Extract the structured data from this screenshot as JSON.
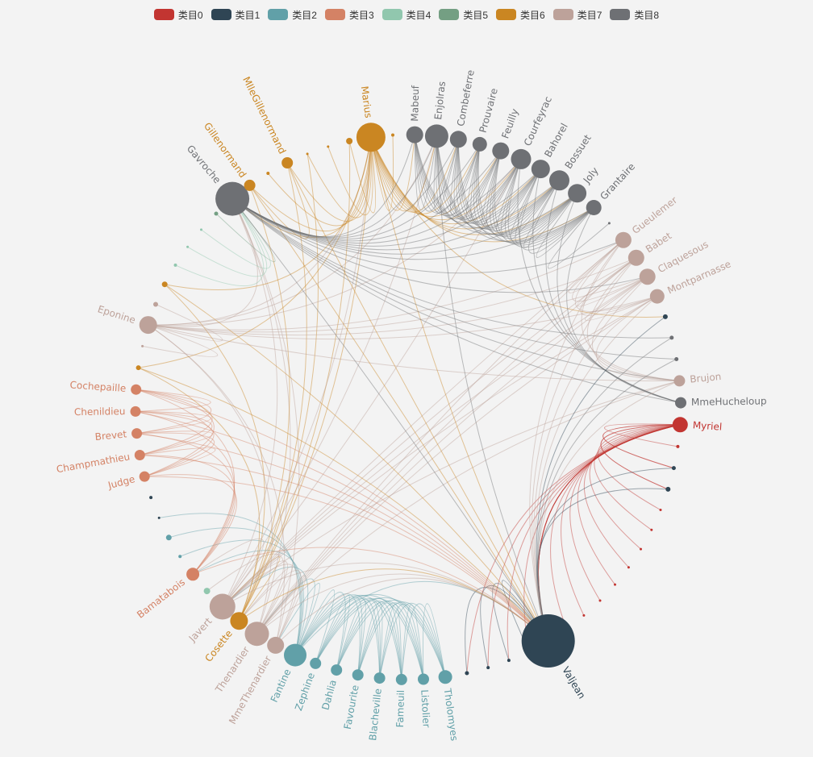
{
  "legend": {
    "items": [
      {
        "label": "类目0",
        "color": "#c23531"
      },
      {
        "label": "类目1",
        "color": "#2f4554"
      },
      {
        "label": "类目2",
        "color": "#61a0a8"
      },
      {
        "label": "类目3",
        "color": "#d48265"
      },
      {
        "label": "类目4",
        "color": "#91c7ae"
      },
      {
        "label": "类目5",
        "color": "#749f83"
      },
      {
        "label": "类目6",
        "color": "#ca8622"
      },
      {
        "label": "类目7",
        "color": "#bda29a"
      },
      {
        "label": "类目8",
        "color": "#6e7074"
      }
    ]
  },
  "nodes": [
    {
      "name": "Myriel",
      "category": 0,
      "size": 9.5,
      "labeled": true
    },
    {
      "name": "",
      "category": 0,
      "size": 2
    },
    {
      "name": "",
      "category": 1,
      "size": 2.5
    },
    {
      "name": "",
      "category": 1,
      "size": 3
    },
    {
      "name": "",
      "category": 0,
      "size": 1.5
    },
    {
      "name": "",
      "category": 0,
      "size": 1.5
    },
    {
      "name": "",
      "category": 0,
      "size": 1.5
    },
    {
      "name": "",
      "category": 0,
      "size": 1.5
    },
    {
      "name": "",
      "category": 0,
      "size": 1.5
    },
    {
      "name": "",
      "category": 0,
      "size": 1.5
    },
    {
      "name": "",
      "category": 0,
      "size": 1.5
    },
    {
      "name": "",
      "category": 0,
      "size": 1.5
    },
    {
      "name": "Valjean",
      "category": 1,
      "size": 33,
      "labeled": true
    },
    {
      "name": "",
      "category": 1,
      "size": 2
    },
    {
      "name": "",
      "category": 1,
      "size": 2
    },
    {
      "name": "",
      "category": 1,
      "size": 2
    },
    {
      "name": "",
      "category": 1,
      "size": 2.5
    },
    {
      "name": "Tholomyes",
      "category": 2,
      "size": 8.5,
      "labeled": true
    },
    {
      "name": "Listolier",
      "category": 2,
      "size": 7,
      "labeled": true
    },
    {
      "name": "Fameuil",
      "category": 2,
      "size": 7,
      "labeled": true
    },
    {
      "name": "Blacheville",
      "category": 2,
      "size": 7,
      "labeled": true
    },
    {
      "name": "Favourite",
      "category": 2,
      "size": 7,
      "labeled": true
    },
    {
      "name": "Dahlia",
      "category": 2,
      "size": 7,
      "labeled": true
    },
    {
      "name": "Zephine",
      "category": 2,
      "size": 7,
      "labeled": true
    },
    {
      "name": "Fantine",
      "category": 2,
      "size": 14,
      "labeled": true
    },
    {
      "name": "MmeThenardier",
      "category": 7,
      "size": 10.5,
      "labeled": true
    },
    {
      "name": "Thenardier",
      "category": 7,
      "size": 15,
      "labeled": true
    },
    {
      "name": "Cosette",
      "category": 6,
      "size": 11,
      "labeled": true
    },
    {
      "name": "Javert",
      "category": 7,
      "size": 16,
      "labeled": true
    },
    {
      "name": "",
      "category": 4,
      "size": 4
    },
    {
      "name": "Bamatabois",
      "category": 3,
      "size": 8,
      "labeled": true
    },
    {
      "name": "",
      "category": 2,
      "size": 2
    },
    {
      "name": "",
      "category": 2,
      "size": 3.5
    },
    {
      "name": "",
      "category": 1,
      "size": 1.5
    },
    {
      "name": "",
      "category": 1,
      "size": 2
    },
    {
      "name": "Judge",
      "category": 3,
      "size": 6.5,
      "labeled": true
    },
    {
      "name": "Champmathieu",
      "category": 3,
      "size": 6.5,
      "labeled": true
    },
    {
      "name": "Brevet",
      "category": 3,
      "size": 6.5,
      "labeled": true
    },
    {
      "name": "Chenildieu",
      "category": 3,
      "size": 6.5,
      "labeled": true
    },
    {
      "name": "Cochepaille",
      "category": 3,
      "size": 6.5,
      "labeled": true
    },
    {
      "name": "",
      "category": 6,
      "size": 3
    },
    {
      "name": "",
      "category": 7,
      "size": 1.5
    },
    {
      "name": "Eponine",
      "category": 7,
      "size": 11,
      "labeled": true
    },
    {
      "name": "",
      "category": 7,
      "size": 3
    },
    {
      "name": "",
      "category": 6,
      "size": 3.5
    },
    {
      "name": "",
      "category": 4,
      "size": 2
    },
    {
      "name": "",
      "category": 4,
      "size": 1.5
    },
    {
      "name": "",
      "category": 4,
      "size": 1.5
    },
    {
      "name": "",
      "category": 5,
      "size": 2.5
    },
    {
      "name": "Gavroche",
      "category": 8,
      "size": 21,
      "labeled": true
    },
    {
      "name": "Gillenormand",
      "category": 6,
      "size": 7,
      "labeled": true
    },
    {
      "name": "",
      "category": 6,
      "size": 2
    },
    {
      "name": "MlleGillenormand",
      "category": 6,
      "size": 7,
      "labeled": true
    },
    {
      "name": "",
      "category": 6,
      "size": 1.5
    },
    {
      "name": "",
      "category": 6,
      "size": 1.5
    },
    {
      "name": "",
      "category": 6,
      "size": 4
    },
    {
      "name": "Marius",
      "category": 6,
      "size": 18,
      "labeled": true
    },
    {
      "name": "",
      "category": 6,
      "size": 2
    },
    {
      "name": "Mabeuf",
      "category": 8,
      "size": 10.5,
      "labeled": true
    },
    {
      "name": "Enjolras",
      "category": 8,
      "size": 14.5,
      "labeled": true
    },
    {
      "name": "Combeferre",
      "category": 8,
      "size": 10.5,
      "labeled": true
    },
    {
      "name": "Prouvaire",
      "category": 8,
      "size": 9,
      "labeled": true
    },
    {
      "name": "Feuilly",
      "category": 8,
      "size": 10.5,
      "labeled": true
    },
    {
      "name": "Courfeyrac",
      "category": 8,
      "size": 12.5,
      "labeled": true
    },
    {
      "name": "Bahorel",
      "category": 8,
      "size": 11.5,
      "labeled": true
    },
    {
      "name": "Bossuet",
      "category": 8,
      "size": 12.5,
      "labeled": true
    },
    {
      "name": "Joly",
      "category": 8,
      "size": 11.5,
      "labeled": true
    },
    {
      "name": "Grantaire",
      "category": 8,
      "size": 9.5,
      "labeled": true
    },
    {
      "name": "",
      "category": 8,
      "size": 1.5
    },
    {
      "name": "Gueulemer",
      "category": 7,
      "size": 10,
      "labeled": true
    },
    {
      "name": "Babet",
      "category": 7,
      "size": 10,
      "labeled": true
    },
    {
      "name": "Claquesous",
      "category": 7,
      "size": 10,
      "labeled": true
    },
    {
      "name": "Montparnasse",
      "category": 7,
      "size": 9,
      "labeled": true
    },
    {
      "name": "",
      "category": 1,
      "size": 3
    },
    {
      "name": "",
      "category": 8,
      "size": 2.5
    },
    {
      "name": "",
      "category": 8,
      "size": 2.5
    },
    {
      "name": "Brujon",
      "category": 7,
      "size": 7,
      "labeled": true
    },
    {
      "name": "MmeHucheloup",
      "category": 8,
      "size": 7,
      "labeled": true
    }
  ],
  "links": [
    [
      0,
      1
    ],
    [
      0,
      2
    ],
    [
      0,
      3
    ],
    [
      0,
      4
    ],
    [
      0,
      5
    ],
    [
      0,
      6
    ],
    [
      0,
      7
    ],
    [
      0,
      8
    ],
    [
      0,
      9
    ],
    [
      0,
      10
    ],
    [
      0,
      11
    ],
    [
      0,
      12
    ],
    [
      0,
      13
    ],
    [
      0,
      14
    ],
    [
      0,
      15
    ],
    [
      0,
      16
    ],
    [
      0,
      3
    ],
    [
      0,
      2
    ],
    [
      0,
      12
    ],
    [
      0,
      12
    ],
    [
      0,
      12
    ],
    [
      0,
      12
    ],
    [
      2,
      12
    ],
    [
      3,
      12
    ],
    [
      12,
      13
    ],
    [
      12,
      14
    ],
    [
      12,
      15
    ],
    [
      12,
      16
    ],
    [
      17,
      18
    ],
    [
      17,
      19
    ],
    [
      17,
      20
    ],
    [
      17,
      21
    ],
    [
      17,
      22
    ],
    [
      17,
      23
    ],
    [
      17,
      24
    ],
    [
      18,
      19
    ],
    [
      18,
      20
    ],
    [
      18,
      21
    ],
    [
      18,
      22
    ],
    [
      18,
      23
    ],
    [
      18,
      24
    ],
    [
      19,
      20
    ],
    [
      19,
      21
    ],
    [
      19,
      22
    ],
    [
      19,
      23
    ],
    [
      19,
      24
    ],
    [
      20,
      21
    ],
    [
      20,
      22
    ],
    [
      20,
      23
    ],
    [
      20,
      24
    ],
    [
      21,
      22
    ],
    [
      21,
      23
    ],
    [
      21,
      24
    ],
    [
      22,
      23
    ],
    [
      22,
      24
    ],
    [
      23,
      24
    ],
    [
      24,
      12
    ],
    [
      24,
      25
    ],
    [
      24,
      26
    ],
    [
      24,
      28
    ],
    [
      24,
      30
    ],
    [
      24,
      31
    ],
    [
      24,
      32
    ],
    [
      24,
      33
    ],
    [
      25,
      26
    ],
    [
      25,
      12
    ],
    [
      25,
      27
    ],
    [
      25,
      28
    ],
    [
      25,
      42
    ],
    [
      25,
      49
    ],
    [
      26,
      12
    ],
    [
      26,
      27
    ],
    [
      26,
      28
    ],
    [
      26,
      42
    ],
    [
      26,
      49
    ],
    [
      26,
      69
    ],
    [
      26,
      70
    ],
    [
      26,
      71
    ],
    [
      26,
      72
    ],
    [
      26,
      76
    ],
    [
      26,
      29
    ],
    [
      27,
      12
    ],
    [
      27,
      28
    ],
    [
      27,
      56
    ],
    [
      27,
      50
    ],
    [
      27,
      52
    ],
    [
      27,
      55
    ],
    [
      27,
      53
    ],
    [
      27,
      44
    ],
    [
      27,
      40
    ],
    [
      28,
      12
    ],
    [
      28,
      30
    ],
    [
      28,
      49
    ],
    [
      28,
      69
    ],
    [
      28,
      70
    ],
    [
      28,
      71
    ],
    [
      28,
      72
    ],
    [
      28,
      76
    ],
    [
      28,
      56
    ],
    [
      28,
      59
    ],
    [
      28,
      63
    ],
    [
      30,
      12
    ],
    [
      30,
      35
    ],
    [
      30,
      36
    ],
    [
      30,
      37
    ],
    [
      30,
      38
    ],
    [
      30,
      39
    ],
    [
      35,
      36
    ],
    [
      35,
      37
    ],
    [
      35,
      38
    ],
    [
      35,
      39
    ],
    [
      36,
      37
    ],
    [
      36,
      38
    ],
    [
      36,
      39
    ],
    [
      37,
      38
    ],
    [
      37,
      39
    ],
    [
      38,
      39
    ],
    [
      35,
      12
    ],
    [
      36,
      12
    ],
    [
      37,
      12
    ],
    [
      38,
      12
    ],
    [
      39,
      12
    ],
    [
      42,
      56
    ],
    [
      42,
      49
    ],
    [
      42,
      69
    ],
    [
      42,
      70
    ],
    [
      42,
      71
    ],
    [
      42,
      72
    ],
    [
      42,
      76
    ],
    [
      42,
      59
    ],
    [
      42,
      63
    ],
    [
      44,
      56
    ],
    [
      44,
      12
    ],
    [
      40,
      12
    ],
    [
      40,
      56
    ],
    [
      43,
      42
    ],
    [
      41,
      42
    ],
    [
      45,
      49
    ],
    [
      46,
      49
    ],
    [
      47,
      49
    ],
    [
      48,
      49
    ],
    [
      50,
      56
    ],
    [
      50,
      12
    ],
    [
      50,
      52
    ],
    [
      51,
      56
    ],
    [
      52,
      56
    ],
    [
      52,
      12
    ],
    [
      53,
      56
    ],
    [
      54,
      56
    ],
    [
      55,
      56
    ],
    [
      57,
      56
    ],
    [
      56,
      12
    ],
    [
      56,
      59
    ],
    [
      56,
      60
    ],
    [
      56,
      61
    ],
    [
      56,
      62
    ],
    [
      56,
      63
    ],
    [
      56,
      64
    ],
    [
      56,
      65
    ],
    [
      56,
      66
    ],
    [
      56,
      67
    ],
    [
      56,
      58
    ],
    [
      56,
      49
    ],
    [
      56,
      73
    ],
    [
      49,
      12
    ],
    [
      49,
      58
    ],
    [
      49,
      59
    ],
    [
      49,
      60
    ],
    [
      49,
      61
    ],
    [
      49,
      62
    ],
    [
      49,
      63
    ],
    [
      49,
      64
    ],
    [
      49,
      65
    ],
    [
      49,
      66
    ],
    [
      49,
      67
    ],
    [
      49,
      74
    ],
    [
      49,
      75
    ],
    [
      49,
      77
    ],
    [
      49,
      69
    ],
    [
      49,
      71
    ],
    [
      49,
      76
    ],
    [
      58,
      59
    ],
    [
      58,
      60
    ],
    [
      58,
      61
    ],
    [
      58,
      62
    ],
    [
      58,
      63
    ],
    [
      58,
      64
    ],
    [
      58,
      65
    ],
    [
      58,
      66
    ],
    [
      59,
      60
    ],
    [
      59,
      61
    ],
    [
      59,
      62
    ],
    [
      59,
      63
    ],
    [
      59,
      64
    ],
    [
      59,
      65
    ],
    [
      59,
      66
    ],
    [
      59,
      67
    ],
    [
      59,
      12
    ],
    [
      60,
      61
    ],
    [
      60,
      62
    ],
    [
      60,
      63
    ],
    [
      60,
      64
    ],
    [
      60,
      65
    ],
    [
      60,
      66
    ],
    [
      60,
      67
    ],
    [
      61,
      62
    ],
    [
      61,
      63
    ],
    [
      61,
      64
    ],
    [
      61,
      65
    ],
    [
      61,
      66
    ],
    [
      61,
      67
    ],
    [
      62,
      63
    ],
    [
      62,
      64
    ],
    [
      62,
      65
    ],
    [
      62,
      66
    ],
    [
      62,
      67
    ],
    [
      63,
      64
    ],
    [
      63,
      65
    ],
    [
      63,
      66
    ],
    [
      63,
      67
    ],
    [
      63,
      77
    ],
    [
      64,
      65
    ],
    [
      64,
      66
    ],
    [
      64,
      67
    ],
    [
      64,
      77
    ],
    [
      65,
      66
    ],
    [
      65,
      67
    ],
    [
      65,
      77
    ],
    [
      66,
      67
    ],
    [
      66,
      77
    ],
    [
      67,
      77
    ],
    [
      67,
      68
    ],
    [
      69,
      70
    ],
    [
      69,
      71
    ],
    [
      69,
      72
    ],
    [
      69,
      76
    ],
    [
      70,
      71
    ],
    [
      70,
      72
    ],
    [
      70,
      76
    ],
    [
      71,
      72
    ],
    [
      71,
      76
    ],
    [
      72,
      76
    ],
    [
      69,
      12
    ],
    [
      70,
      12
    ],
    [
      71,
      12
    ],
    [
      72,
      12
    ],
    [
      76,
      12
    ],
    [
      73,
      12
    ],
    [
      74,
      12
    ],
    [
      75,
      12
    ]
  ]
}
